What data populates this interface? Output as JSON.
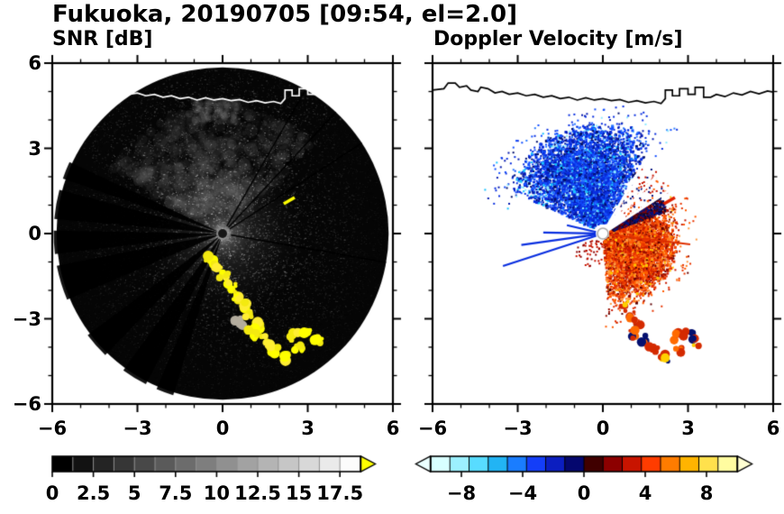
{
  "chart_data": {
    "type": "heatmap",
    "subtype": "radar-ppi-pair",
    "title": "Fukuoka, 20190705 [09:54, el=2.0]",
    "coastline": [
      [
        -6.0,
        5.05
      ],
      [
        -5.6,
        5.1
      ],
      [
        -5.45,
        5.3
      ],
      [
        -5.2,
        5.3
      ],
      [
        -5.05,
        5.15
      ],
      [
        -4.8,
        5.2
      ],
      [
        -4.65,
        5.05
      ],
      [
        -4.4,
        5.0
      ],
      [
        -4.3,
        5.15
      ],
      [
        -4.05,
        5.1
      ],
      [
        -3.8,
        4.95
      ],
      [
        -3.55,
        5.0
      ],
      [
        -3.3,
        4.9
      ],
      [
        -3.0,
        4.95
      ],
      [
        -2.7,
        4.85
      ],
      [
        -2.4,
        4.9
      ],
      [
        -2.1,
        4.8
      ],
      [
        -1.8,
        4.85
      ],
      [
        -1.5,
        4.75
      ],
      [
        -1.2,
        4.8
      ],
      [
        -0.9,
        4.7
      ],
      [
        -0.6,
        4.78
      ],
      [
        -0.3,
        4.7
      ],
      [
        0.0,
        4.75
      ],
      [
        0.3,
        4.68
      ],
      [
        0.6,
        4.72
      ],
      [
        0.9,
        4.62
      ],
      [
        1.2,
        4.68
      ],
      [
        1.5,
        4.6
      ],
      [
        1.8,
        4.65
      ],
      [
        2.05,
        4.58
      ],
      [
        2.2,
        4.75
      ],
      [
        2.2,
        5.05
      ],
      [
        2.45,
        5.05
      ],
      [
        2.45,
        4.85
      ],
      [
        2.7,
        4.85
      ],
      [
        2.7,
        5.1
      ],
      [
        3.0,
        5.1
      ],
      [
        3.0,
        4.9
      ],
      [
        3.25,
        4.9
      ],
      [
        3.25,
        5.15
      ],
      [
        3.55,
        5.15
      ],
      [
        3.55,
        4.8
      ],
      [
        3.8,
        4.8
      ],
      [
        4.0,
        4.9
      ],
      [
        4.3,
        4.82
      ],
      [
        4.6,
        4.95
      ],
      [
        4.9,
        4.88
      ],
      [
        5.2,
        5.0
      ],
      [
        5.5,
        4.92
      ],
      [
        5.8,
        5.02
      ],
      [
        6.0,
        4.98
      ]
    ],
    "panels": [
      {
        "id": "snr",
        "title": "SNR [dB]",
        "xlim": [
          -6,
          6
        ],
        "ylim": [
          -6,
          6
        ],
        "xtick_values": [
          -6,
          -3,
          0,
          3,
          6
        ],
        "xtick_labels": [
          "−6",
          "−3",
          "0",
          "3",
          "6"
        ],
        "ytick_values": [
          6,
          3,
          0,
          -3,
          -6
        ],
        "ytick_labels": [
          "6",
          "3",
          "0",
          "−3",
          "−6"
        ],
        "colorbar": {
          "range": [
            0,
            18.75
          ],
          "tick_values": [
            0,
            2.5,
            5,
            7.5,
            10,
            12.5,
            15,
            17.5
          ],
          "tick_labels": [
            "0",
            "2.5",
            "5",
            "7.5",
            "10",
            "12.5",
            "15",
            "17.5"
          ],
          "segments": [
            "#000000",
            "#121212",
            "#242424",
            "#363636",
            "#484848",
            "#5a5a5a",
            "#6c6c6c",
            "#7e7e7e",
            "#909090",
            "#a2a2a2",
            "#b4b4b4",
            "#c6c6c6",
            "#d8d8d8",
            "#eaeaea",
            "#fcfcfc"
          ],
          "separator_color": "#909090",
          "arrow_left": null,
          "arrow_right": "#ffff00"
        },
        "features": {
          "disk_radius": 5.85,
          "disk_color": "#050505",
          "blocked_sectors": [
            [
              197,
              203
            ],
            [
              207,
              216
            ],
            [
              224,
              233
            ],
            [
              247,
              259
            ],
            [
              263,
              271
            ],
            [
              275,
              285
            ],
            [
              289,
              295
            ]
          ],
          "thin_rays": [
            30,
            43,
            57,
            100
          ],
          "clutter_color": "#ffff00",
          "clutter_path": [
            [
              -0.45,
              -0.8
            ],
            [
              -0.2,
              -1.15
            ],
            [
              0.05,
              -1.5
            ],
            [
              0.3,
              -1.85
            ],
            [
              0.5,
              -2.2
            ],
            [
              0.75,
              -2.55
            ],
            [
              0.95,
              -2.9
            ],
            [
              1.25,
              -3.2
            ],
            [
              1.05,
              -3.55
            ],
            [
              1.45,
              -3.75
            ],
            [
              1.8,
              -4.05
            ],
            [
              2.2,
              -4.35
            ],
            [
              2.65,
              -4.1
            ],
            [
              2.55,
              -3.6
            ],
            [
              3.0,
              -3.55
            ],
            [
              3.35,
              -3.8
            ]
          ],
          "gray_blob": [
            0.55,
            -3.1
          ],
          "dash": {
            "xy": [
              2.35,
              1.15
            ],
            "angle": -30,
            "color": "#ffff00"
          },
          "coast_color": "#ffffff"
        }
      },
      {
        "id": "velocity",
        "title": "Doppler Velocity [m/s]",
        "xlim": [
          -6,
          6
        ],
        "ylim": [
          -6,
          6
        ],
        "xtick_values": [
          -6,
          -3,
          0,
          3,
          6
        ],
        "xtick_labels": [
          "−6",
          "−3",
          "0",
          "3",
          "6"
        ],
        "ytick_values": [
          6,
          3,
          0,
          -3,
          -6
        ],
        "ytick_labels": [],
        "colorbar": {
          "range": [
            -10,
            10
          ],
          "tick_values": [
            -8,
            -4,
            0,
            4,
            8
          ],
          "tick_labels": [
            "−8",
            "−4",
            "0",
            "4",
            "8"
          ],
          "segments": [
            "#d8ffff",
            "#9cf0ff",
            "#58dcff",
            "#22b4f4",
            "#1a7dff",
            "#143ef8",
            "#0b1ec0",
            "#04076e",
            "#400000",
            "#8c0000",
            "#c81400",
            "#ff3c00",
            "#ff7c00",
            "#ffb400",
            "#ffe14c",
            "#fffca0"
          ],
          "separator_color": "#000000",
          "arrow_left": "#eaffff",
          "arrow_right": "#ffffd2"
        },
        "features": {
          "toward_fan": {
            "az": [
              -65,
              28
            ],
            "r": [
              0.35,
              3.9
            ],
            "colors": [
              "#0a2fe0",
              "#1450ff",
              "#071bb0",
              "#03106e",
              "#2f7dff",
              "#18c3ff",
              "#8feaff"
            ],
            "weights": [
              0.38,
              0.18,
              0.14,
              0.1,
              0.08,
              0.07,
              0.05
            ]
          },
          "away_fan": {
            "az": [
              66,
              176
            ],
            "r": [
              0.25,
              2.7
            ],
            "colors": [
              "#e83400",
              "#ff5a00",
              "#c81800",
              "#9c0f00",
              "#ff7d1e",
              "#5f0000",
              "#ff9a40",
              "#ffc400"
            ],
            "weights": [
              0.26,
              0.22,
              0.14,
              0.1,
              0.1,
              0.06,
              0.07,
              0.05
            ]
          },
          "boundary_colors": [
            "#06127e",
            "#3a060c",
            "#8c0000",
            "#02073f"
          ],
          "clutter_path": [
            [
              0.75,
              -2.55
            ],
            [
              0.95,
              -2.9
            ],
            [
              1.25,
              -3.2
            ],
            [
              1.05,
              -3.55
            ],
            [
              1.45,
              -3.75
            ],
            [
              1.8,
              -4.05
            ],
            [
              2.2,
              -4.35
            ],
            [
              2.65,
              -4.1
            ],
            [
              2.55,
              -3.6
            ],
            [
              3.0,
              -3.55
            ],
            [
              3.35,
              -3.8
            ]
          ],
          "cut_rays": [
            30,
            43,
            57
          ],
          "west_streaks": [
            [
              252,
              3.7
            ],
            [
              262,
              2.9
            ],
            [
              271,
              2.1
            ],
            [
              283,
              1.3
            ]
          ],
          "east_streak": [
            97,
            3.1
          ],
          "streak_color": "#0a2fe0",
          "dash": {
            "xy": [
              2.35,
              1.15
            ],
            "angle": -30,
            "color": "#e02000"
          },
          "center": {
            "fill": "#ffffff",
            "stroke": "#aaaaaa"
          },
          "coast_color": "#000000"
        }
      }
    ]
  }
}
